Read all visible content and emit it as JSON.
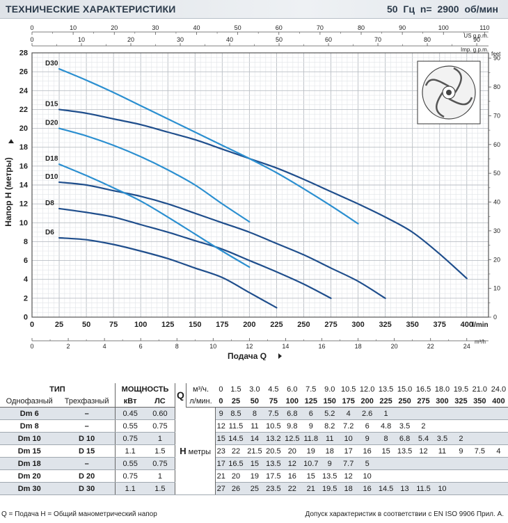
{
  "header": {
    "title": "ТЕХНИЧЕСКИЕ ХАРАКТЕРИСТИКИ",
    "freq": "50 Гц    n= 2900  об/мин"
  },
  "chart_data": {
    "type": "line",
    "ylabel": "Напор Н (метры)",
    "xlabel": "Подача Q",
    "x_unit": "l/min",
    "xlim": [
      0,
      420
    ],
    "ylim": [
      0,
      28
    ],
    "grid": true,
    "x_ticks": [
      25,
      50,
      75,
      100,
      125,
      150,
      175,
      200,
      225,
      250,
      275,
      300,
      325,
      350,
      375,
      400
    ],
    "y_ticks": [
      0,
      2,
      4,
      6,
      8,
      10,
      12,
      14,
      16,
      18,
      20,
      22,
      24,
      26,
      28
    ],
    "us_gpm": {
      "label": "US g.p.m.",
      "ticks": [
        0,
        10,
        20,
        30,
        40,
        50,
        60,
        70,
        80,
        90,
        100,
        110
      ]
    },
    "imp_gpm": {
      "label": "Imp. g.p.m.",
      "ticks": [
        0,
        10,
        20,
        30,
        40,
        50,
        60,
        70,
        80,
        90
      ]
    },
    "m3h": {
      "label": "m³/h",
      "ticks": [
        0,
        2,
        4,
        6,
        8,
        10,
        12,
        14,
        16,
        18,
        20,
        22,
        24
      ]
    },
    "feet": {
      "label": "feet",
      "ticks": [
        0,
        10,
        20,
        30,
        40,
        50,
        60,
        70,
        80,
        90
      ]
    },
    "colors": {
      "dark": "#1f4e8c",
      "light": "#2b8fd0"
    },
    "series": [
      {
        "name": "D6",
        "color": "#1f4e8c",
        "x": [
          25,
          50,
          75,
          100,
          125,
          150,
          175,
          200,
          225
        ],
        "y": [
          8.4,
          8.2,
          7.7,
          7.0,
          6.2,
          5.2,
          4.2,
          2.6,
          1.0
        ]
      },
      {
        "name": "D8",
        "color": "#1f4e8c",
        "x": [
          25,
          50,
          75,
          100,
          125,
          150,
          175,
          200,
          225,
          250,
          275
        ],
        "y": [
          11.5,
          11.1,
          10.6,
          9.8,
          9.0,
          8.1,
          7.2,
          6.0,
          4.8,
          3.5,
          2.0
        ]
      },
      {
        "name": "D10",
        "color": "#1f4e8c",
        "x": [
          25,
          50,
          75,
          100,
          125,
          150,
          175,
          200,
          225,
          250,
          275,
          300,
          325
        ],
        "y": [
          14.3,
          14.0,
          13.4,
          12.8,
          12.0,
          11.0,
          10.0,
          9.0,
          7.8,
          6.6,
          5.2,
          3.8,
          2.0
        ]
      },
      {
        "name": "D15",
        "color": "#1f4e8c",
        "x": [
          25,
          50,
          75,
          100,
          125,
          150,
          175,
          200,
          225,
          250,
          275,
          300,
          325,
          350,
          375,
          400
        ],
        "y": [
          22.0,
          21.6,
          21.0,
          20.4,
          19.6,
          18.8,
          17.8,
          16.8,
          15.8,
          14.6,
          13.3,
          12.0,
          10.6,
          9.0,
          6.7,
          4.1
        ]
      },
      {
        "name": "D18",
        "color": "#2b8fd0",
        "x": [
          25,
          50,
          75,
          100,
          125,
          150,
          175,
          200
        ],
        "y": [
          16.2,
          15.0,
          13.7,
          12.3,
          10.6,
          8.8,
          7.0,
          5.3
        ]
      },
      {
        "name": "D20",
        "color": "#2b8fd0",
        "x": [
          25,
          50,
          75,
          100,
          125,
          150,
          175,
          200
        ],
        "y": [
          20.0,
          19.2,
          18.2,
          17.0,
          15.6,
          14.0,
          12.0,
          10.1
        ]
      },
      {
        "name": "D30",
        "color": "#2b8fd0",
        "x": [
          25,
          50,
          75,
          100,
          125,
          150,
          175,
          200,
          225,
          250,
          275,
          300
        ],
        "y": [
          26.3,
          25.1,
          23.8,
          22.4,
          21.0,
          19.6,
          18.2,
          16.8,
          15.3,
          13.6,
          11.8,
          9.9
        ]
      }
    ]
  },
  "table": {
    "tip": "ТИП",
    "power": "МОЩНОСТЬ",
    "single": "Однофазный",
    "three": "Трехфазный",
    "kw": "кВт",
    "hp": "ЛС",
    "q_symbol": "Q",
    "q_m3h": "м³/ч.",
    "q_lmin": "л/мин.",
    "h_symbol": "Н",
    "h_unit": "метры",
    "m3h_values": [
      "0",
      "1.5",
      "3.0",
      "4.5",
      "6.0",
      "7.5",
      "9.0",
      "10.5",
      "12.0",
      "13.5",
      "15.0",
      "16.5",
      "18.0",
      "19.5",
      "21.0",
      "24.0"
    ],
    "lmin_values": [
      "0",
      "25",
      "50",
      "75",
      "100",
      "125",
      "150",
      "175",
      "200",
      "225",
      "250",
      "275",
      "300",
      "325",
      "350",
      "400"
    ],
    "rows": [
      {
        "single": "Dm 6",
        "three": "–",
        "kw": "0.45",
        "hp": "0.60",
        "h": [
          "9",
          "8.5",
          "8",
          "7.5",
          "6.8",
          "6",
          "5.2",
          "4",
          "2.6",
          "1",
          "",
          "",
          "",
          "",
          "",
          ""
        ]
      },
      {
        "single": "Dm 8",
        "three": "–",
        "kw": "0.55",
        "hp": "0.75",
        "h": [
          "12",
          "11.5",
          "11",
          "10.5",
          "9.8",
          "9",
          "8.2",
          "7.2",
          "6",
          "4.8",
          "3.5",
          "2",
          "",
          "",
          "",
          ""
        ]
      },
      {
        "single": "Dm 10",
        "three": "D 10",
        "kw": "0.75",
        "hp": "1",
        "h": [
          "15",
          "14.5",
          "14",
          "13.2",
          "12.5",
          "11.8",
          "11",
          "10",
          "9",
          "8",
          "6.8",
          "5.4",
          "3.5",
          "2",
          "",
          ""
        ]
      },
      {
        "single": "Dm 15",
        "three": "D 15",
        "kw": "1.1",
        "hp": "1.5",
        "h": [
          "23",
          "22",
          "21.5",
          "20.5",
          "20",
          "19",
          "18",
          "17",
          "16",
          "15",
          "13.5",
          "12",
          "11",
          "9",
          "7.5",
          "4"
        ]
      },
      {
        "single": "Dm 18",
        "three": "–",
        "kw": "0.55",
        "hp": "0.75",
        "h": [
          "17",
          "16.5",
          "15",
          "13.5",
          "12",
          "10.7",
          "9",
          "7.7",
          "5",
          "",
          "",
          "",
          "",
          "",
          "",
          ""
        ]
      },
      {
        "single": "Dm 20",
        "three": "D 20",
        "kw": "0.75",
        "hp": "1",
        "h": [
          "21",
          "20",
          "19",
          "17.5",
          "16",
          "15",
          "13.5",
          "12",
          "10",
          "",
          "",
          "",
          "",
          "",
          "",
          ""
        ]
      },
      {
        "single": "Dm 30",
        "three": "D 30",
        "kw": "1.1",
        "hp": "1.5",
        "h": [
          "27",
          "26",
          "25",
          "23.5",
          "22",
          "21",
          "19.5",
          "18",
          "16",
          "14.5",
          "13",
          "11.5",
          "10",
          "",
          "",
          ""
        ]
      }
    ]
  },
  "footer": {
    "left": "Q = Подача  H = Общий манометрический напор",
    "right": "Допуск характеристик в соответствии с EN ISO 9906 Прил. А."
  }
}
